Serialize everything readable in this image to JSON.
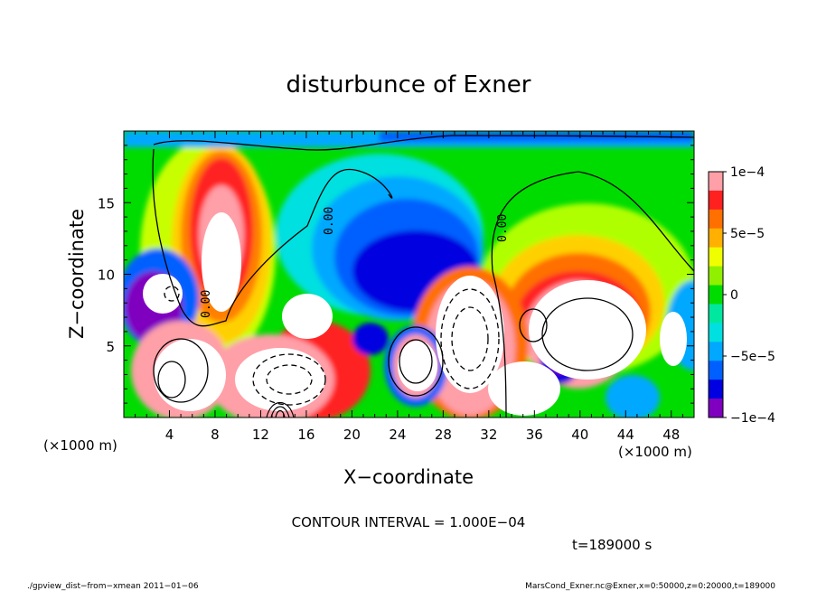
{
  "chart_data": {
    "type": "heatmap",
    "title": "disturbunce of Exner",
    "xlabel": "X−coordinate",
    "ylabel": "Z−coordinate",
    "x_unit": "(×1000 m)",
    "y_unit": "(×1000 m)",
    "xlim": [
      0,
      50
    ],
    "ylim": [
      0,
      20
    ],
    "x_ticks": [
      4,
      8,
      12,
      16,
      20,
      24,
      28,
      32,
      36,
      40,
      44,
      48
    ],
    "x_tick_labels": [
      "4",
      "8",
      "12",
      "16",
      "20",
      "24",
      "28",
      "32",
      "36",
      "40",
      "44",
      "48"
    ],
    "y_ticks": [
      5,
      10,
      15
    ],
    "y_tick_labels": [
      "5",
      "10",
      "15"
    ],
    "colorbar": {
      "range": [
        -0.0001,
        0.0001
      ],
      "tick_values": [
        0.0001,
        5e-05,
        0,
        -5e-05,
        -0.0001
      ],
      "tick_labels": [
        "1e−4",
        "5e−5",
        "0",
        "−5e−5",
        "−1e−4"
      ],
      "colors": [
        "#ff9fa8",
        "#ff2020",
        "#ff7000",
        "#ffb000",
        "#f0ff00",
        "#90f000",
        "#00dc00",
        "#00e8a0",
        "#00e0e0",
        "#00a8ff",
        "#0060ff",
        "#0000e0",
        "#8000c0"
      ]
    },
    "contour_labels": [
      "0.00",
      "0.00",
      "0.00"
    ],
    "contour_interval_text": "CONTOUR INTERVAL = 1.000E−04",
    "time_text": "t=189000 s",
    "footer_left": "./gpview_dist−from−xmean  2011−01−06",
    "footer_right": "MarsCond_Exner.nc@Exner,x=0:50000,z=0:20000,t=189000"
  }
}
